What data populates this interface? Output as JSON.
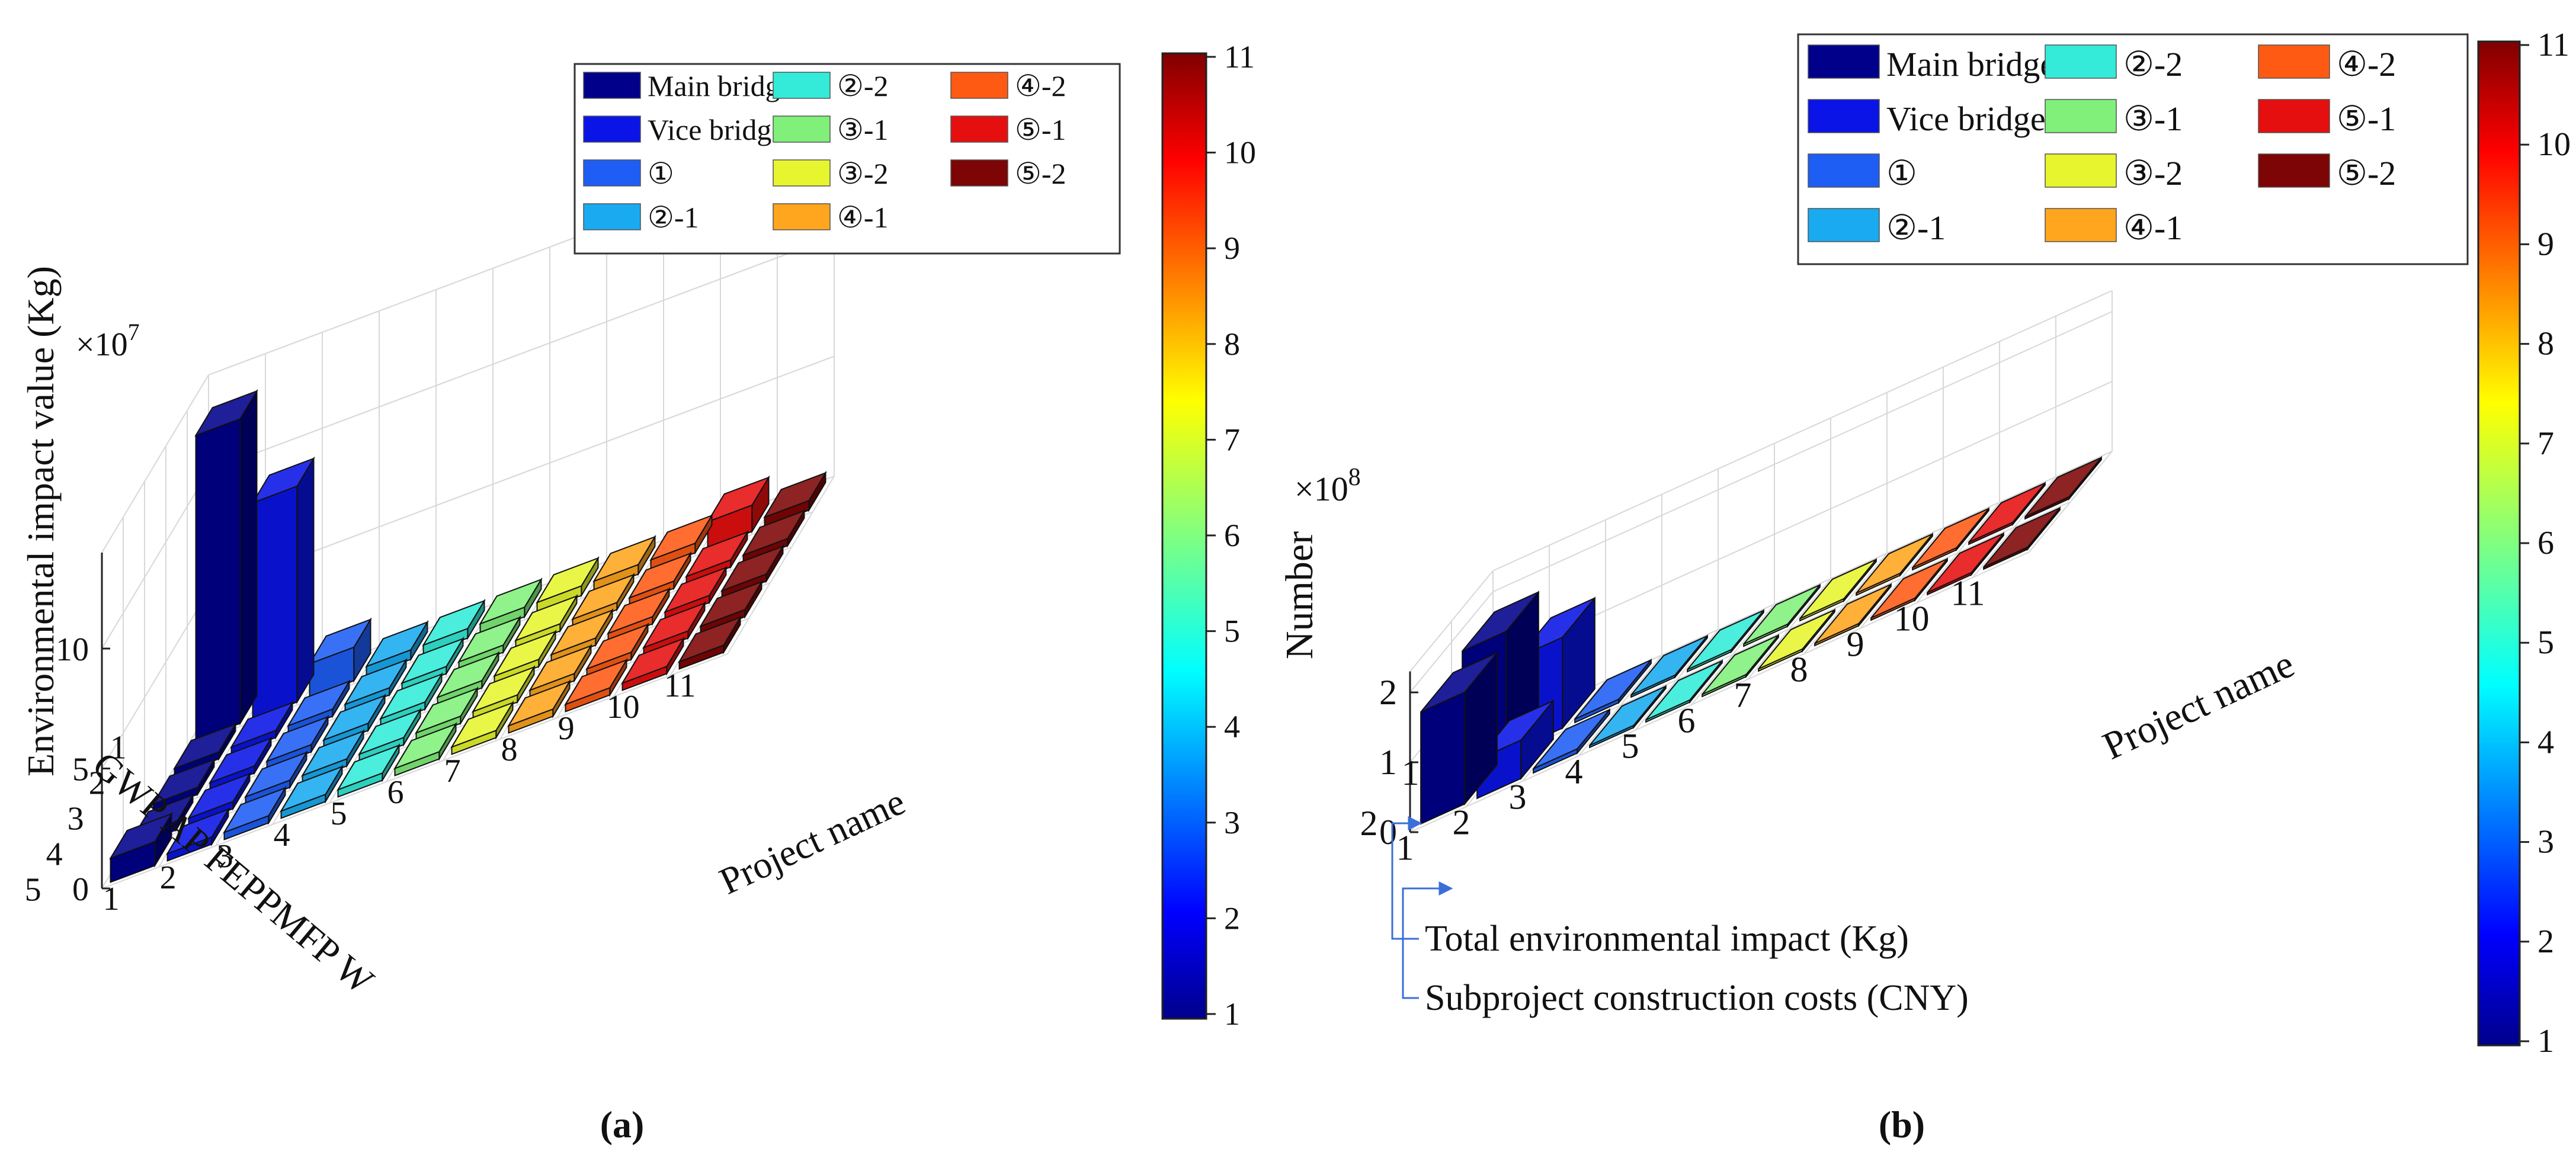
{
  "figure_captions": {
    "a": "(a)",
    "b": "(b)"
  },
  "colors": {
    "main_bridge": "#00008B",
    "vice_bridge": "#0A14E6",
    "p1": "#1E5EF5",
    "p2_1": "#19AAF0",
    "p2_2": "#33EBD8",
    "p3_1": "#80F07A",
    "p3_2": "#E6F52E",
    "p4_1": "#FFA51E",
    "p4_2": "#FF5A14",
    "p5_1": "#E60F0F",
    "p5_2": "#7D0505"
  },
  "chart_data": [
    {
      "id": "a",
      "type": "bar3d",
      "title": "",
      "zlabel": "Environmental impact value (Kg)",
      "exponent_label": "×10",
      "exponent_power": "7",
      "z_ticks": [
        "0",
        "5",
        "10"
      ],
      "z_tick_values": [
        0,
        5,
        10
      ],
      "zlim": [
        0,
        14
      ],
      "x_ticks": [
        "1",
        "2",
        "3",
        "4",
        "5",
        "6",
        "7",
        "8",
        "9",
        "10",
        "11"
      ],
      "xlabel": "Project name",
      "y_ticks": [
        "1",
        "2",
        "3",
        "4",
        "5"
      ],
      "y_categories_label": "GWP AP FEPPMFP W",
      "legend": [
        "Main bridge",
        "Vice bridge",
        "①",
        "②-1",
        "②-2",
        "③-1",
        "③-2",
        "④-1",
        "④-2",
        "⑤-1",
        "⑤-2"
      ],
      "colorbar_ticks": [
        "1",
        "2",
        "3",
        "4",
        "5",
        "6",
        "7",
        "8",
        "9",
        "10",
        "11"
      ],
      "series": [
        {
          "name": "GWP",
          "values": [
            12.7,
            9.0,
            1.4,
            0.4,
            0.4,
            0.4,
            0.4,
            0.4,
            0.4,
            1.1,
            0.4
          ]
        },
        {
          "name": "AP",
          "values": [
            0.3,
            0.3,
            0.3,
            0.3,
            0.3,
            0.3,
            0.3,
            0.3,
            0.3,
            0.3,
            0.3
          ]
        },
        {
          "name": "FEP",
          "values": [
            0.3,
            0.3,
            0.3,
            0.3,
            0.3,
            0.3,
            0.3,
            0.3,
            0.3,
            0.3,
            0.3
          ]
        },
        {
          "name": "PMFP",
          "values": [
            0.3,
            0.3,
            0.3,
            0.3,
            0.3,
            0.3,
            0.3,
            0.3,
            0.3,
            0.3,
            0.3
          ]
        },
        {
          "name": "W",
          "values": [
            1.0,
            0.3,
            0.3,
            0.3,
            0.3,
            0.3,
            0.3,
            0.3,
            0.3,
            0.3,
            0.3
          ]
        }
      ]
    },
    {
      "id": "b",
      "type": "bar3d",
      "title": "",
      "zlabel": "Number",
      "exponent_label": "×10",
      "exponent_power": "8",
      "z_ticks": [
        "0",
        "1",
        "2"
      ],
      "z_tick_values": [
        0,
        1,
        2
      ],
      "zlim": [
        0,
        2.3
      ],
      "x_ticks": [
        "1",
        "2",
        "3",
        "4",
        "5",
        "6",
        "7",
        "8",
        "9",
        "10",
        "11"
      ],
      "xlabel": "Project name",
      "y_ticks": [
        "1",
        "2"
      ],
      "legend": [
        "Main bridge",
        "Vice bridge",
        "①",
        "②-1",
        "②-2",
        "③-1",
        "③-2",
        "④-1",
        "④-2",
        "⑤-1",
        "⑤-2"
      ],
      "colorbar_ticks": [
        "1",
        "2",
        "3",
        "4",
        "5",
        "6",
        "7",
        "8",
        "9",
        "10",
        "11"
      ],
      "annotations": [
        "Total environmental impact (Kg)",
        "Subproject construction costs (CNY)"
      ],
      "series": [
        {
          "name": "Total environmental impact (Kg)",
          "values": [
            1.75,
            1.3,
            0.05,
            0.03,
            0.03,
            0.03,
            0.03,
            0.03,
            0.03,
            0.03,
            0.03
          ]
        },
        {
          "name": "Subproject construction costs (CNY)",
          "values": [
            1.6,
            0.55,
            0.06,
            0.03,
            0.03,
            0.03,
            0.03,
            0.03,
            0.03,
            0.03,
            0.03
          ]
        }
      ]
    }
  ]
}
